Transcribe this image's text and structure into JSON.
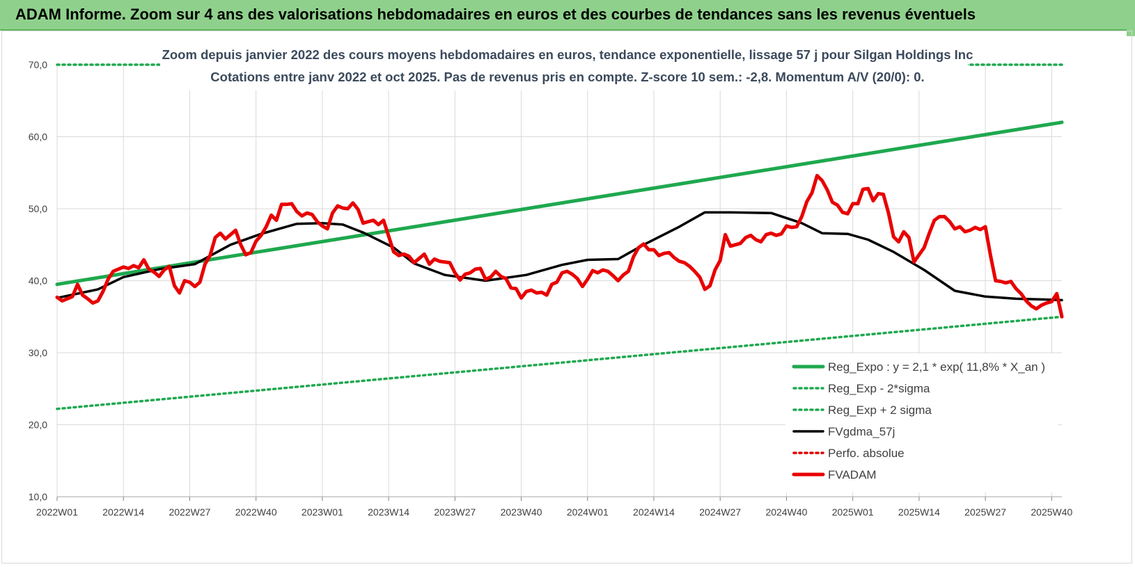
{
  "header": {
    "title": "ADAM Informe. Zoom sur 4 ans des valorisations hebdomadaires en euros et des courbes de tendances sans les revenus éventuels"
  },
  "chart_data": {
    "type": "line",
    "title": "Zoom depuis janvier 2022 des cours moyens hebdomadaires en euros, tendance exponentielle, lissage 57 j pour Silgan Holdings Inc",
    "subtitle": "Cotations entre janv 2022 et oct 2025. Pas de revenus pris en compte. Z-score 10 sem.: -2,8. Momentum A/V (20/0): 0.",
    "xlabel": "",
    "ylabel": "",
    "ylim": [
      10,
      70
    ],
    "yticks": [
      "10,0",
      "20,0",
      "30,0",
      "40,0",
      "50,0",
      "60,0",
      "70,0"
    ],
    "xticks": [
      "2022W01",
      "2022W14",
      "2022W27",
      "2022W40",
      "2023W01",
      "2023W14",
      "2023W27",
      "2023W40",
      "2024W01",
      "2024W14",
      "2024W27",
      "2024W40",
      "2025W01",
      "2025W14",
      "2025W27",
      "2025W40"
    ],
    "grid": true,
    "legend_position": "bottom-right",
    "colors": {
      "expo": "#1fa84f",
      "sigma": "#1fa84f",
      "fvgdma": "#000000",
      "perfo": "#e00000",
      "fvadam": "#e80000",
      "header_bg": "#8fd18c"
    },
    "x_range": [
      0,
      197
    ],
    "series": [
      {
        "name": "Reg_Expo : y = 2,1 * exp( 11,8% * X_an )",
        "style": "solid-thick",
        "color": "#1fa84f",
        "x": [
          0,
          197
        ],
        "values": [
          39.5,
          62.0
        ]
      },
      {
        "name": "Reg_Exp - 2*sigma",
        "style": "dotted",
        "color": "#1fa84f",
        "x": [
          0,
          197
        ],
        "values": [
          22.2,
          35.0
        ]
      },
      {
        "name": "Reg_Exp + 2 sigma",
        "style": "dotted",
        "color": "#1fa84f",
        "x": [
          0,
          197
        ],
        "values": [
          70.0,
          70.0
        ]
      },
      {
        "name": "FVgdma_57j",
        "style": "solid",
        "color": "#000000",
        "x": [
          0,
          8,
          13,
          20,
          27,
          34,
          40,
          47,
          52,
          56,
          60,
          66,
          70,
          76,
          84,
          92,
          99,
          104,
          110,
          115,
          122,
          127,
          132,
          140,
          146,
          150,
          155,
          159,
          164,
          170,
          176,
          182,
          188,
          193,
          197
        ],
        "values": [
          37.6,
          38.8,
          40.5,
          41.6,
          42.3,
          45.0,
          46.5,
          47.9,
          48.0,
          47.8,
          46.7,
          44.6,
          42.4,
          40.8,
          40.0,
          40.8,
          42.2,
          42.9,
          43.0,
          45.0,
          47.5,
          49.5,
          49.5,
          49.4,
          48.0,
          46.6,
          46.5,
          45.7,
          44.0,
          41.5,
          38.6,
          37.8,
          37.5,
          37.4,
          37.3
        ]
      },
      {
        "name": "Perfo. absolue",
        "style": "dotted",
        "color": "#e00000",
        "x": [],
        "values": []
      },
      {
        "name": "FVADAM",
        "style": "solid-thick",
        "color": "#e80000",
        "x": [
          0,
          1,
          2,
          3,
          4,
          5,
          6,
          7,
          8,
          9,
          10,
          11,
          12,
          13,
          14,
          15,
          16,
          17,
          18,
          19,
          20,
          21,
          22,
          23,
          24,
          25,
          26,
          27,
          28,
          29,
          30,
          31,
          32,
          33,
          34,
          35,
          36,
          37,
          38,
          39,
          40,
          41,
          42,
          43,
          44,
          45,
          46,
          47,
          48,
          49,
          50,
          51,
          52,
          53,
          54,
          55,
          56,
          57,
          58,
          59,
          60,
          61,
          62,
          63,
          64,
          65,
          66,
          67,
          68,
          69,
          70,
          71,
          72,
          73,
          74,
          75,
          76,
          77,
          78,
          79,
          80,
          81,
          82,
          83,
          84,
          85,
          86,
          87,
          88,
          89,
          90,
          91,
          92,
          93,
          94,
          95,
          96,
          97,
          98,
          99,
          100,
          101,
          102,
          103,
          104,
          105,
          106,
          107,
          108,
          109,
          110,
          111,
          112,
          113,
          114,
          115,
          116,
          117,
          118,
          119,
          120,
          121,
          122,
          123,
          124,
          125,
          126,
          127,
          128,
          129,
          130,
          131,
          132,
          133,
          134,
          135,
          136,
          137,
          138,
          139,
          140,
          141,
          142,
          143,
          144,
          145,
          146,
          147,
          148,
          149,
          150,
          151,
          152,
          153,
          154,
          155,
          156,
          157,
          158,
          159,
          160,
          161,
          162,
          163,
          164,
          165,
          166,
          167,
          168,
          169,
          170,
          171,
          172,
          173,
          174,
          175,
          176,
          177,
          178,
          179,
          180,
          181,
          182,
          183,
          184,
          185,
          186,
          187,
          188,
          189,
          190,
          191,
          192,
          193,
          194,
          195,
          196,
          197
        ],
        "values": [
          37.7,
          37.2,
          37.5,
          37.8,
          39.5,
          38.0,
          37.5,
          36.9,
          37.2,
          38.5,
          40.2,
          41.3,
          41.6,
          41.9,
          41.7,
          42.1,
          41.8,
          42.9,
          41.6,
          41.2,
          40.6,
          41.5,
          42.0,
          39.3,
          38.3,
          40.0,
          39.8,
          39.2,
          39.8,
          42.3,
          43.5,
          46.0,
          46.6,
          45.8,
          46.4,
          47.0,
          45.0,
          43.6,
          43.9,
          45.5,
          46.3,
          47.5,
          49.1,
          48.4,
          50.6,
          50.6,
          50.7,
          49.6,
          49.0,
          49.4,
          49.2,
          48.2,
          47.6,
          47.2,
          49.4,
          50.4,
          50.1,
          50.0,
          50.8,
          49.9,
          48.0,
          48.2,
          48.4,
          47.8,
          48.4,
          46.2,
          44.0,
          43.5,
          43.7,
          43.4,
          42.5,
          43.1,
          43.7,
          42.3,
          43.0,
          42.7,
          42.6,
          42.5,
          41.1,
          40.1,
          40.9,
          41.1,
          41.6,
          41.7,
          40.2,
          40.5,
          41.3,
          40.6,
          40.3,
          39.0,
          38.9,
          37.6,
          38.5,
          38.7,
          38.3,
          38.4,
          38.0,
          39.5,
          39.8,
          41.1,
          41.3,
          40.9,
          40.3,
          39.2,
          40.2,
          41.4,
          41.1,
          41.5,
          41.3,
          40.7,
          40.0,
          40.8,
          41.3,
          43.3,
          44.6,
          45.1,
          44.3,
          44.3,
          43.5,
          43.8,
          43.9,
          43.2,
          42.7,
          42.5,
          42.0,
          41.3,
          40.5,
          38.8,
          39.3,
          41.5,
          42.8,
          46.4,
          44.8,
          45.0,
          45.2,
          46.0,
          46.3,
          45.7,
          45.4,
          46.4,
          46.6,
          46.3,
          46.5,
          47.6,
          47.4,
          47.5,
          48.9,
          51.0,
          52.2,
          54.6,
          53.9,
          52.6,
          50.9,
          50.5,
          49.5,
          49.3,
          50.7,
          50.7,
          52.7,
          52.8,
          51.1,
          52.1,
          52.0,
          49.4,
          46.1,
          45.4,
          46.8,
          46.0,
          42.6,
          43.6,
          44.6,
          46.6,
          48.4,
          48.9,
          48.9,
          48.2,
          47.2,
          47.5,
          46.8,
          47.0,
          47.4,
          47.1,
          47.5,
          43.5,
          40.0,
          39.9,
          39.7,
          39.9,
          38.9,
          38.2,
          37.2,
          36.5,
          36.1,
          36.6,
          36.9,
          37.1,
          38.2,
          35.0
        ]
      }
    ]
  }
}
